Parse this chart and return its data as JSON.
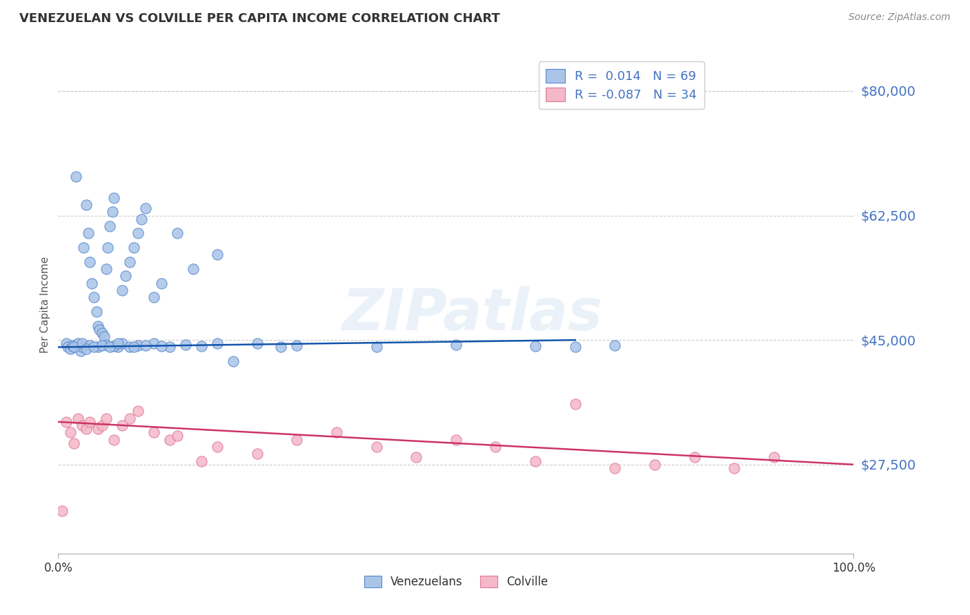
{
  "title": "VENEZUELAN VS COLVILLE PER CAPITA INCOME CORRELATION CHART",
  "source": "Source: ZipAtlas.com",
  "ylabel": "Per Capita Income",
  "xlim": [
    0.0,
    100.0
  ],
  "ylim": [
    15000,
    85000
  ],
  "yticks": [
    27500,
    45000,
    62500,
    80000
  ],
  "ytick_labels": [
    "$27,500",
    "$45,000",
    "$62,500",
    "$80,000"
  ],
  "xtick_labels": [
    "0.0%",
    "100.0%"
  ],
  "background_color": "#ffffff",
  "grid_color": "#cccccc",
  "watermark": "ZIPatlas",
  "series": [
    {
      "name": "Venezuelans",
      "R": "0.014",
      "N": 69,
      "fill_color": "#aac4e8",
      "edge_color": "#5588cc",
      "line_color": "#1155aa",
      "points_x": [
        1.0,
        1.2,
        1.5,
        1.8,
        2.0,
        2.2,
        2.5,
        2.8,
        3.0,
        3.2,
        3.5,
        3.8,
        4.0,
        4.2,
        4.5,
        4.8,
        5.0,
        5.2,
        5.5,
        5.8,
        6.0,
        6.2,
        6.5,
        6.8,
        7.0,
        7.5,
        8.0,
        8.5,
        9.0,
        9.5,
        10.0,
        10.5,
        11.0,
        12.0,
        13.0,
        15.0,
        17.0,
        20.0,
        22.0,
        25.0,
        28.0,
        2.0,
        3.0,
        4.0,
        5.0,
        6.0,
        7.0,
        8.0,
        9.0,
        10.0,
        12.0,
        14.0,
        16.0,
        18.0,
        3.5,
        4.5,
        5.5,
        6.5,
        7.5,
        9.5,
        11.0,
        13.0,
        20.0,
        30.0,
        40.0,
        50.0,
        60.0,
        65.0,
        70.0
      ],
      "points_y": [
        44500,
        44000,
        43800,
        44200,
        44000,
        68000,
        44500,
        43500,
        44000,
        58000,
        64000,
        60000,
        56000,
        53000,
        51000,
        49000,
        47000,
        46500,
        46000,
        45500,
        55000,
        58000,
        61000,
        63000,
        65000,
        44000,
        52000,
        54000,
        56000,
        58000,
        60000,
        62000,
        63500,
        51000,
        53000,
        60000,
        55000,
        57000,
        42000,
        44500,
        44000,
        44000,
        44500,
        44200,
        44000,
        44300,
        44100,
        44500,
        44000,
        44200,
        44500,
        44000,
        44300,
        44100,
        43800,
        44000,
        44200,
        44000,
        44500,
        44000,
        44200,
        44100,
        44500,
        44200,
        44000,
        44300,
        44100,
        44000,
        44200
      ],
      "trend_x": [
        0,
        65
      ],
      "trend_y": [
        44000,
        45000
      ]
    },
    {
      "name": "Colville",
      "R": "-0.087",
      "N": 34,
      "fill_color": "#f4b8c8",
      "edge_color": "#dd7799",
      "line_color": "#cc3366",
      "points_x": [
        0.5,
        1.0,
        1.5,
        2.0,
        2.5,
        3.0,
        3.5,
        4.0,
        5.0,
        5.5,
        6.0,
        7.0,
        8.0,
        9.0,
        10.0,
        12.0,
        14.0,
        18.0,
        20.0,
        25.0,
        30.0,
        35.0,
        40.0,
        45.0,
        50.0,
        55.0,
        60.0,
        65.0,
        70.0,
        75.0,
        80.0,
        85.0,
        90.0,
        15.0
      ],
      "points_y": [
        21000,
        33500,
        32000,
        30500,
        34000,
        33000,
        32500,
        33500,
        32500,
        33000,
        34000,
        31000,
        33000,
        34000,
        35000,
        32000,
        31000,
        28000,
        30000,
        29000,
        31000,
        32000,
        30000,
        28500,
        31000,
        30000,
        28000,
        36000,
        27000,
        27500,
        28500,
        27000,
        28500,
        31500
      ],
      "trend_x": [
        0,
        100
      ],
      "trend_y": [
        33500,
        27500
      ]
    }
  ],
  "title_color": "#333333",
  "tick_label_color": "#4472c4"
}
